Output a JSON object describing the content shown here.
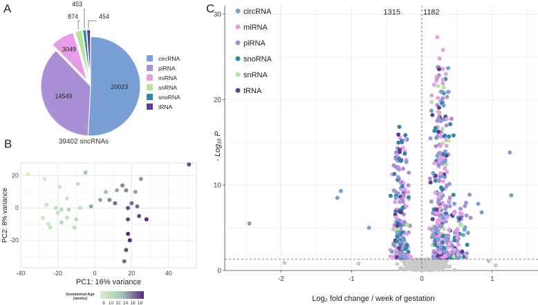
{
  "panel_letters": [
    "A",
    "B",
    "C"
  ],
  "colors": {
    "circRNA": "#7a9fd4",
    "piRNA": "#a98fd6",
    "miRNA": "#e79ce6",
    "snRNA": "#b9e39b",
    "snoRNA": "#2f86a8",
    "tRNA": "#5d3f92",
    "gray": "#c9c9c9"
  },
  "chart_data": [
    {
      "type": "pie",
      "panel": "A",
      "slices": [
        {
          "name": "circRNA",
          "value": 20023
        },
        {
          "name": "piRNA",
          "value": 14549
        },
        {
          "name": "miRNA",
          "value": 3049
        },
        {
          "name": "snRNA",
          "value": 874
        },
        {
          "name": "snoRNA",
          "value": 453
        },
        {
          "name": "tRNA",
          "value": 454
        }
      ],
      "legend": [
        "circRNA",
        "piRNA",
        "miRNA",
        "snRNA",
        "snoRNA",
        "tRNA"
      ],
      "caption": "39402 sncRNAs"
    },
    {
      "type": "scatter",
      "panel": "B",
      "xlabel": "PC1: 16% variance",
      "ylabel": "PC2: 8% variance",
      "xlim": [
        -40,
        55
      ],
      "ylim": [
        -37,
        28
      ],
      "xticks": [
        -40,
        -20,
        0,
        20,
        40
      ],
      "yticks": [
        -20,
        0,
        20
      ],
      "colorbar": {
        "title": "Gestational Age",
        "subtitle": "(weeks)",
        "ticks": [
          8,
          10,
          12,
          14,
          16,
          18
        ],
        "low": "#d8f0c4",
        "high": "#5a2a7f"
      },
      "points": [
        {
          "x": -36,
          "y": 21,
          "age": 8
        },
        {
          "x": -27,
          "y": 18,
          "age": 8.5
        },
        {
          "x": -19,
          "y": 13,
          "age": 9
        },
        {
          "x": -9,
          "y": 15,
          "age": 10
        },
        {
          "x": -15,
          "y": 6,
          "age": 9
        },
        {
          "x": -26,
          "y": 2,
          "age": 9.5
        },
        {
          "x": -21,
          "y": 0,
          "age": 10
        },
        {
          "x": -18,
          "y": -1,
          "age": 10.5
        },
        {
          "x": -14,
          "y": -1,
          "age": 11
        },
        {
          "x": -8,
          "y": 0,
          "age": 10
        },
        {
          "x": -28,
          "y": -6,
          "age": 9
        },
        {
          "x": -20,
          "y": -3,
          "age": 10
        },
        {
          "x": -25,
          "y": -10,
          "age": 9
        },
        {
          "x": -24,
          "y": -12,
          "age": 9.5
        },
        {
          "x": -15,
          "y": -6,
          "age": 10
        },
        {
          "x": -18,
          "y": -9,
          "age": 11
        },
        {
          "x": -10,
          "y": -7,
          "age": 10.5
        },
        {
          "x": -11,
          "y": -12,
          "age": 10
        },
        {
          "x": -5,
          "y": 22,
          "age": 13
        },
        {
          "x": -2,
          "y": 1,
          "age": 14
        },
        {
          "x": 6,
          "y": 10,
          "age": 13
        },
        {
          "x": 12,
          "y": 11,
          "age": 14
        },
        {
          "x": 17,
          "y": 11,
          "age": 15
        },
        {
          "x": 15,
          "y": 14,
          "age": 15
        },
        {
          "x": 22,
          "y": 10,
          "age": 14
        },
        {
          "x": 25,
          "y": 18,
          "age": 14.5
        },
        {
          "x": 3,
          "y": 5,
          "age": 14
        },
        {
          "x": 8,
          "y": 5,
          "age": 15
        },
        {
          "x": 11,
          "y": 3,
          "age": 16
        },
        {
          "x": 20,
          "y": 3,
          "age": 16
        },
        {
          "x": 23,
          "y": 1,
          "age": 16
        },
        {
          "x": 18,
          "y": 0,
          "age": 17
        },
        {
          "x": 24,
          "y": -5,
          "age": 17
        },
        {
          "x": 28,
          "y": -7,
          "age": 18
        },
        {
          "x": 18,
          "y": -7,
          "age": 17
        },
        {
          "x": 18,
          "y": -16,
          "age": 18
        },
        {
          "x": 19,
          "y": -20,
          "age": 18
        },
        {
          "x": 17,
          "y": -26,
          "age": 17
        },
        {
          "x": 16,
          "y": -33,
          "age": 16
        },
        {
          "x": 51,
          "y": 27,
          "age": 17
        }
      ]
    },
    {
      "type": "scatter",
      "panel": "C",
      "subtype": "volcano",
      "xlabel": "Log₂ fold change / week of gestation",
      "ylabel": "- Log₁₀ P",
      "xlim": [
        -2.8,
        1.65
      ],
      "ylim": [
        0,
        31
      ],
      "xticks": [
        -2,
        -1,
        0,
        1
      ],
      "yticks": [
        0,
        10,
        20,
        30
      ],
      "threshold_y": 1.3,
      "down_count": "1315",
      "up_count": "1182",
      "legend": [
        "circRNA",
        "miRNA",
        "piRNA",
        "snoRNA",
        "snRNA",
        "tRNA"
      ],
      "highlight_points": [
        {
          "x": -2.45,
          "y": 5.5,
          "type": "piRNA"
        },
        {
          "x": -1.15,
          "y": 9.3,
          "type": "circRNA"
        },
        {
          "x": -1.2,
          "y": 8.5,
          "type": "circRNA"
        },
        {
          "x": -0.75,
          "y": 5.0,
          "type": "circRNA"
        },
        {
          "x": 1.25,
          "y": 13.8,
          "type": "circRNA"
        },
        {
          "x": 1.27,
          "y": 8.8,
          "type": "circRNA"
        },
        {
          "x": 0.8,
          "y": 7.8,
          "type": "circRNA"
        },
        {
          "x": 0.85,
          "y": 6.8,
          "type": "circRNA"
        },
        {
          "x": 0.22,
          "y": 27.3,
          "type": "miRNA"
        },
        {
          "x": 0.3,
          "y": 25.8,
          "type": "miRNA"
        },
        {
          "x": 0.25,
          "y": 24.8,
          "type": "miRNA"
        },
        {
          "x": -0.32,
          "y": 16.8,
          "type": "snoRNA"
        },
        {
          "x": 0.45,
          "y": 15.8,
          "type": "snoRNA"
        },
        {
          "x": 0.38,
          "y": 15.2,
          "type": "snRNA"
        }
      ],
      "clusters": [
        {
          "center_x": -0.3,
          "spread_x": 0.17,
          "y_min": 1.5,
          "y_max": 16,
          "count": 220
        },
        {
          "center_x": 0.26,
          "spread_x": 0.2,
          "y_min": 1.5,
          "y_max": 24,
          "count": 320
        },
        {
          "center_x": 0.5,
          "spread_x": 0.22,
          "y_min": 1.5,
          "y_max": 9,
          "count": 90
        }
      ]
    }
  ]
}
